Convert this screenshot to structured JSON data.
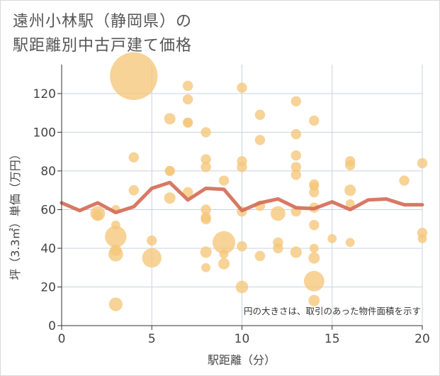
{
  "title_line1": "遠州小林駅（静岡県）の",
  "title_line2": "駅距離別中古戸建て価格",
  "note": "円の大きさは、取引のあった物件面積を示す",
  "colors": {
    "bubble": "#f5c67a",
    "line": "#d36a55",
    "grid": "#c9d3e0",
    "axis": "#333333"
  },
  "chart_data": {
    "type": "scatter",
    "xlabel": "駅距離（分）",
    "ylabel": "坪（3.3㎡）単価（万円）",
    "xlim": [
      0,
      20
    ],
    "ylim": [
      0,
      135
    ],
    "xticks": [
      0,
      5,
      10,
      15,
      20
    ],
    "yticks": [
      0,
      20,
      40,
      60,
      80,
      100,
      120
    ],
    "points": [
      {
        "x": 4,
        "y": 129,
        "s": 4.2
      },
      {
        "x": 2,
        "y": 58,
        "s": 1.3
      },
      {
        "x": 2,
        "y": 57,
        "s": 0.9
      },
      {
        "x": 3,
        "y": 60,
        "s": 0.8
      },
      {
        "x": 3,
        "y": 52,
        "s": 0.8
      },
      {
        "x": 3,
        "y": 46,
        "s": 1.9
      },
      {
        "x": 3,
        "y": 39,
        "s": 1.0
      },
      {
        "x": 3,
        "y": 37,
        "s": 1.3
      },
      {
        "x": 3,
        "y": 11,
        "s": 1.2
      },
      {
        "x": 4,
        "y": 87,
        "s": 0.9
      },
      {
        "x": 4,
        "y": 70,
        "s": 0.9
      },
      {
        "x": 5,
        "y": 44,
        "s": 0.9
      },
      {
        "x": 5,
        "y": 35,
        "s": 1.7
      },
      {
        "x": 6,
        "y": 107,
        "s": 1.0
      },
      {
        "x": 6,
        "y": 80,
        "s": 0.9
      },
      {
        "x": 6,
        "y": 80,
        "s": 0.8
      },
      {
        "x": 6,
        "y": 66,
        "s": 1.0
      },
      {
        "x": 7,
        "y": 124,
        "s": 0.9
      },
      {
        "x": 7,
        "y": 117,
        "s": 0.9
      },
      {
        "x": 7,
        "y": 105,
        "s": 0.9
      },
      {
        "x": 7,
        "y": 105,
        "s": 0.8
      },
      {
        "x": 7,
        "y": 69,
        "s": 0.9
      },
      {
        "x": 8,
        "y": 100,
        "s": 0.9
      },
      {
        "x": 8,
        "y": 86,
        "s": 0.9
      },
      {
        "x": 8,
        "y": 82,
        "s": 0.9
      },
      {
        "x": 8,
        "y": 60,
        "s": 0.9
      },
      {
        "x": 8,
        "y": 56,
        "s": 0.9
      },
      {
        "x": 8,
        "y": 55,
        "s": 0.9
      },
      {
        "x": 8,
        "y": 38,
        "s": 1.0
      },
      {
        "x": 8,
        "y": 30,
        "s": 0.8
      },
      {
        "x": 9,
        "y": 75,
        "s": 0.9
      },
      {
        "x": 9,
        "y": 43,
        "s": 2.0
      },
      {
        "x": 9,
        "y": 37,
        "s": 0.8
      },
      {
        "x": 9,
        "y": 32,
        "s": 1.0
      },
      {
        "x": 10,
        "y": 123,
        "s": 0.9
      },
      {
        "x": 10,
        "y": 85,
        "s": 0.9
      },
      {
        "x": 10,
        "y": 82,
        "s": 0.9
      },
      {
        "x": 10,
        "y": 59,
        "s": 0.9
      },
      {
        "x": 10,
        "y": 41,
        "s": 0.9
      },
      {
        "x": 10,
        "y": 20,
        "s": 1.1
      },
      {
        "x": 11,
        "y": 109,
        "s": 0.9
      },
      {
        "x": 11,
        "y": 96,
        "s": 0.9
      },
      {
        "x": 11,
        "y": 62,
        "s": 0.9
      },
      {
        "x": 11,
        "y": 36,
        "s": 0.9
      },
      {
        "x": 12,
        "y": 58,
        "s": 1.3
      },
      {
        "x": 12,
        "y": 43,
        "s": 0.9
      },
      {
        "x": 12,
        "y": 40,
        "s": 0.9
      },
      {
        "x": 13,
        "y": 116,
        "s": 0.9
      },
      {
        "x": 13,
        "y": 99,
        "s": 0.9
      },
      {
        "x": 13,
        "y": 88,
        "s": 0.9
      },
      {
        "x": 13,
        "y": 82,
        "s": 0.9
      },
      {
        "x": 13,
        "y": 78,
        "s": 0.9
      },
      {
        "x": 13,
        "y": 59,
        "s": 0.9
      },
      {
        "x": 13,
        "y": 38,
        "s": 1.0
      },
      {
        "x": 14,
        "y": 106,
        "s": 0.9
      },
      {
        "x": 14,
        "y": 73,
        "s": 0.9
      },
      {
        "x": 14,
        "y": 72,
        "s": 0.8
      },
      {
        "x": 14,
        "y": 69,
        "s": 0.9
      },
      {
        "x": 14,
        "y": 61,
        "s": 0.9
      },
      {
        "x": 14,
        "y": 52,
        "s": 0.9
      },
      {
        "x": 14,
        "y": 40,
        "s": 0.8
      },
      {
        "x": 14,
        "y": 35,
        "s": 1.0
      },
      {
        "x": 14,
        "y": 23,
        "s": 1.8
      },
      {
        "x": 14,
        "y": 13,
        "s": 1.0
      },
      {
        "x": 15,
        "y": 45,
        "s": 0.8
      },
      {
        "x": 16,
        "y": 85,
        "s": 0.9
      },
      {
        "x": 16,
        "y": 83,
        "s": 0.9
      },
      {
        "x": 16,
        "y": 70,
        "s": 1.0
      },
      {
        "x": 16,
        "y": 63,
        "s": 0.8
      },
      {
        "x": 16,
        "y": 43,
        "s": 0.8
      },
      {
        "x": 19,
        "y": 75,
        "s": 0.9
      },
      {
        "x": 20,
        "y": 84,
        "s": 0.9
      },
      {
        "x": 20,
        "y": 48,
        "s": 0.9
      },
      {
        "x": 20,
        "y": 45,
        "s": 0.8
      }
    ],
    "average_line": {
      "x": [
        0,
        1,
        2,
        3,
        4,
        5,
        6,
        7,
        8,
        9,
        10,
        11,
        12,
        13,
        14,
        15,
        16,
        17,
        18,
        19,
        20
      ],
      "y": [
        63.5,
        59.5,
        63.5,
        58.5,
        61.5,
        71,
        74,
        65,
        71,
        70.5,
        59.5,
        63.5,
        65.5,
        61,
        60.5,
        64,
        60,
        65,
        65.5,
        62.5,
        62.5
      ]
    }
  }
}
